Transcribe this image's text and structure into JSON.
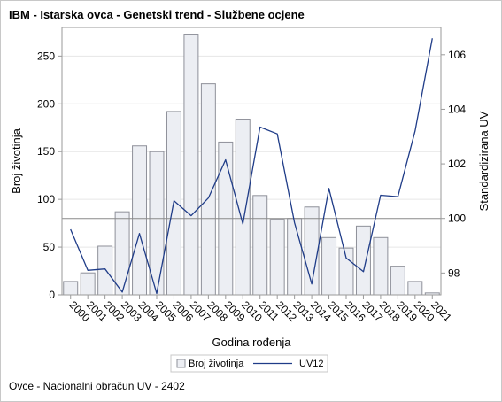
{
  "title": "IBM - Istarska ovca - Genetski trend - Službene ocjene",
  "footnote": "Ovce - Nacionalni obračun UV - 2402",
  "colors": {
    "bar_fill": "#eceef3",
    "bar_stroke": "#8e9099",
    "line": "#1f3c88",
    "ref_line": "#8a8a8a",
    "grid": "#e6e6e6",
    "axis": "#9a9a9a"
  },
  "chart_data": {
    "type": "bar",
    "categories": [
      "2000",
      "2001",
      "2002",
      "2003",
      "2004",
      "2005",
      "2006",
      "2007",
      "2008",
      "2009",
      "2010",
      "2011",
      "2012",
      "2013",
      "2014",
      "2015",
      "2016",
      "2017",
      "2018",
      "2019",
      "2020",
      "2021"
    ],
    "series": [
      {
        "name": "Broj životinja",
        "type": "bar",
        "axis": "left",
        "values": [
          14,
          23,
          51,
          87,
          156,
          150,
          192,
          273,
          221,
          160,
          184,
          104,
          79,
          80,
          92,
          60,
          49,
          72,
          60,
          30,
          14,
          2
        ]
      },
      {
        "name": "UV12",
        "type": "line",
        "axis": "right",
        "values": [
          99.6,
          98.1,
          98.15,
          97.3,
          99.45,
          97.25,
          100.65,
          100.1,
          100.75,
          102.15,
          99.8,
          103.35,
          103.1,
          99.85,
          97.6,
          101.1,
          98.55,
          98.05,
          100.85,
          100.8,
          103.2,
          106.6
        ]
      }
    ],
    "xlabel": "Godina rođenja",
    "ylabel_left": "Broj životinja",
    "ylabel_right": "Standardizirana UV",
    "ylim_left": [
      0,
      280
    ],
    "yticks_left": [
      0,
      50,
      100,
      150,
      200,
      250
    ],
    "ylim_right": [
      97.2,
      107
    ],
    "yticks_right": [
      98,
      100,
      102,
      104,
      106
    ],
    "reference_line_right": 100,
    "grid": true,
    "legend": {
      "position": "bottom",
      "entries": [
        "Broj životinja",
        "UV12"
      ]
    }
  }
}
